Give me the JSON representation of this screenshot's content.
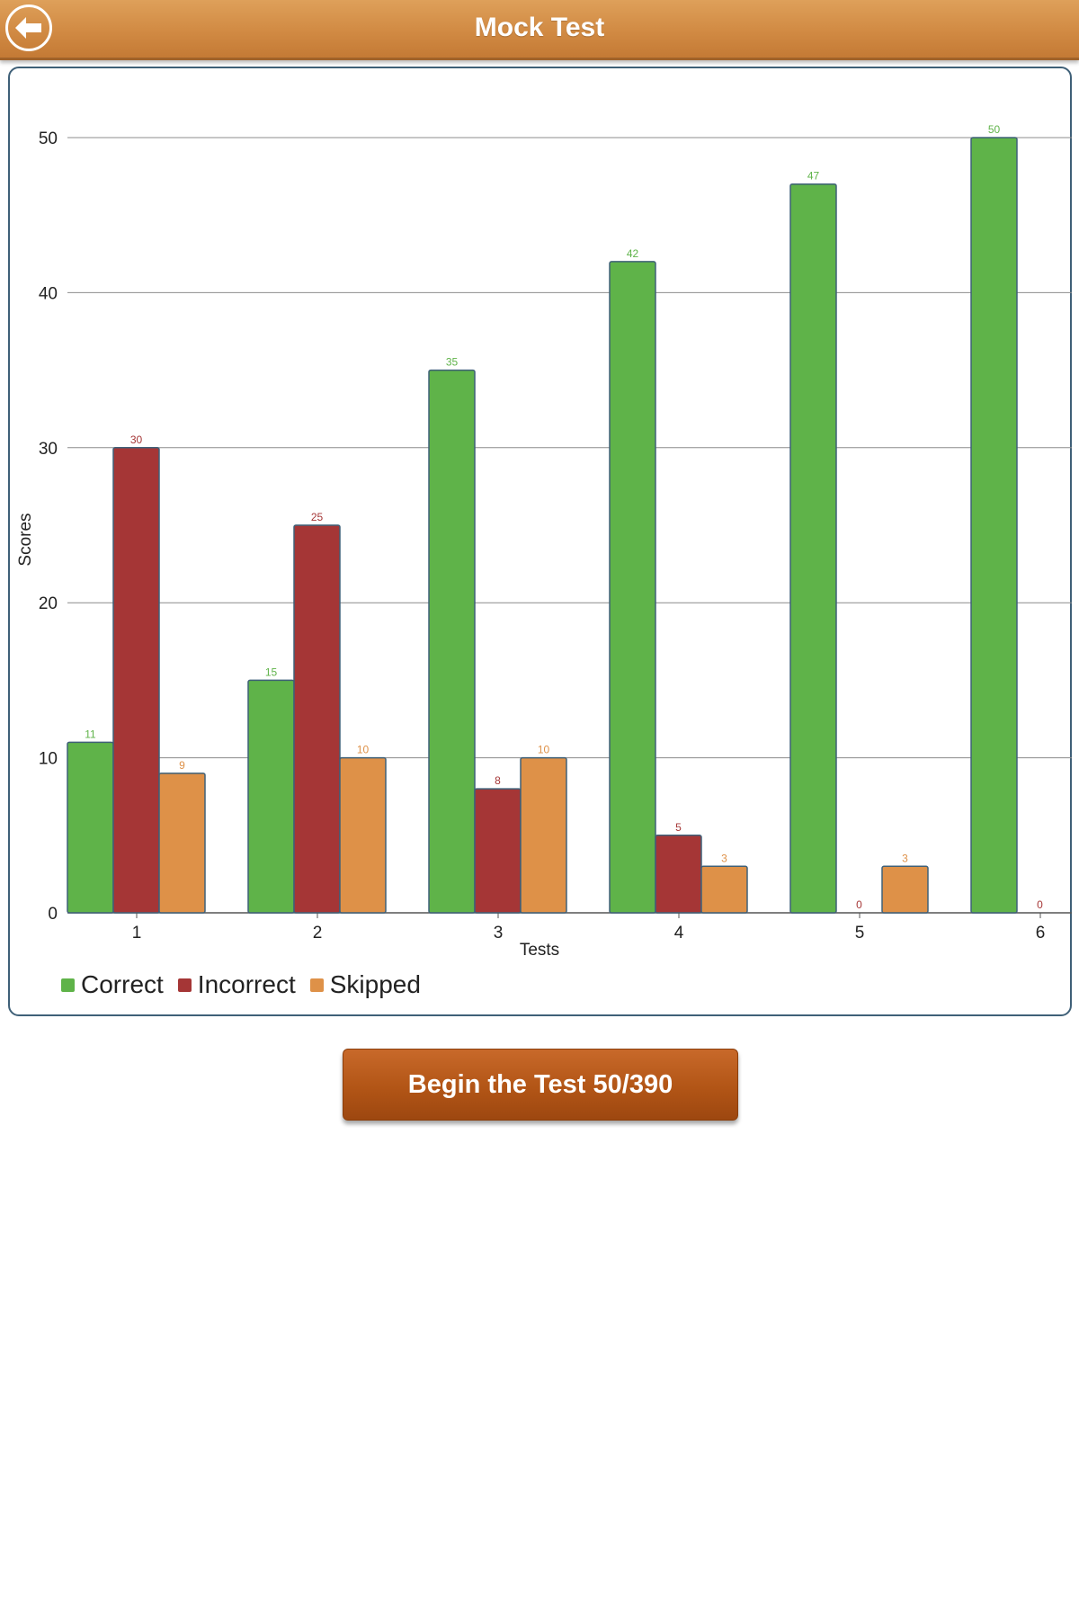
{
  "header": {
    "title": "Mock Test",
    "back_icon": "back-arrow-icon"
  },
  "button": {
    "label": "Begin the Test 50/390"
  },
  "colors": {
    "header": "#d18a43",
    "correct": "#5fb349",
    "incorrect": "#a53636",
    "skipped": "#de9148",
    "bar_border": "#3f6078",
    "button": "#b25516"
  },
  "chart_data": {
    "type": "bar",
    "categories": [
      "1",
      "2",
      "3",
      "4",
      "5",
      "6"
    ],
    "series": [
      {
        "name": "Correct",
        "color": "#5fb349",
        "values": [
          11,
          15,
          35,
          42,
          47,
          50
        ]
      },
      {
        "name": "Incorrect",
        "color": "#a53636",
        "values": [
          30,
          25,
          8,
          5,
          0,
          0
        ]
      },
      {
        "name": "Skipped",
        "color": "#de9148",
        "values": [
          9,
          10,
          10,
          3,
          3,
          null
        ]
      }
    ],
    "xlabel": "Tests",
    "ylabel": "Scores",
    "ylim": [
      0,
      50
    ],
    "yticks": [
      0,
      10,
      20,
      30,
      40,
      50
    ],
    "grid": true,
    "legend": "bottom-left"
  }
}
